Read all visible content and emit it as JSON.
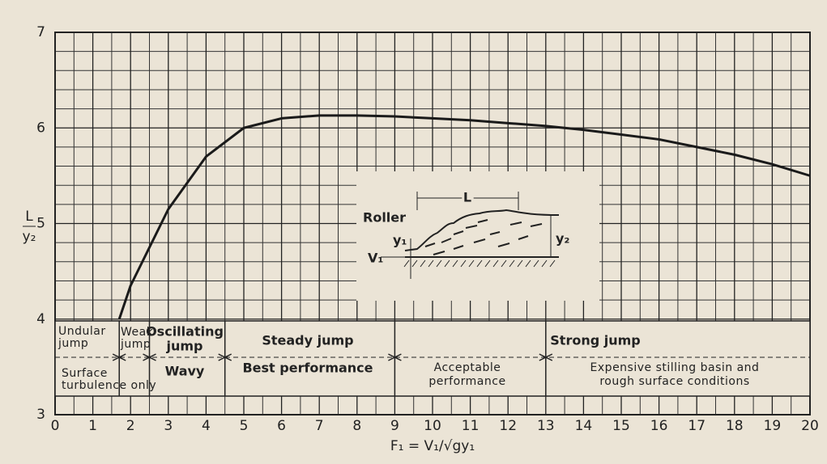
{
  "chart_data": {
    "type": "line",
    "y_label": [
      "L",
      "y₂"
    ],
    "x_label": "F₁ = V₁/√gy₁",
    "x": [
      1.7,
      2,
      3,
      4,
      5,
      6,
      7,
      8,
      9,
      10,
      11,
      12,
      13,
      14,
      15,
      16,
      17,
      18,
      19,
      20
    ],
    "values": [
      4.0,
      4.35,
      5.15,
      5.7,
      6.0,
      6.1,
      6.13,
      6.13,
      6.12,
      6.1,
      6.08,
      6.05,
      6.02,
      5.98,
      5.93,
      5.88,
      5.8,
      5.72,
      5.62,
      5.5
    ],
    "color": "#1a1a1a",
    "xlim": [
      0,
      20
    ],
    "xticks": [
      0,
      1,
      2,
      3,
      4,
      5,
      6,
      7,
      8,
      9,
      10,
      11,
      12,
      13,
      14,
      15,
      16,
      17,
      18,
      19,
      20
    ],
    "ylim": [
      3,
      7
    ],
    "yticks": [
      3,
      4,
      5,
      6,
      7
    ],
    "grid": true,
    "region_bounds": [
      1.7,
      2.5,
      4.5,
      9,
      13
    ],
    "regions": {
      "undular": [
        "Undular",
        "jump"
      ],
      "surface": [
        "Surface",
        "turbulence only"
      ],
      "weak": [
        "Weak",
        "jump"
      ],
      "oscillating": [
        "Oscillating",
        "jump"
      ],
      "wavy": "Wavy",
      "steady": "Steady jump",
      "best": "Best performance",
      "acceptable": [
        "Acceptable",
        "performance"
      ],
      "strong": "Strong jump",
      "expensive": [
        "Expensive stilling basin and",
        "rough surface conditions"
      ]
    },
    "inset": {
      "length": "L",
      "roller": "Roller",
      "y1": "y₁",
      "y2": "y₂",
      "v1": "V₁"
    }
  }
}
